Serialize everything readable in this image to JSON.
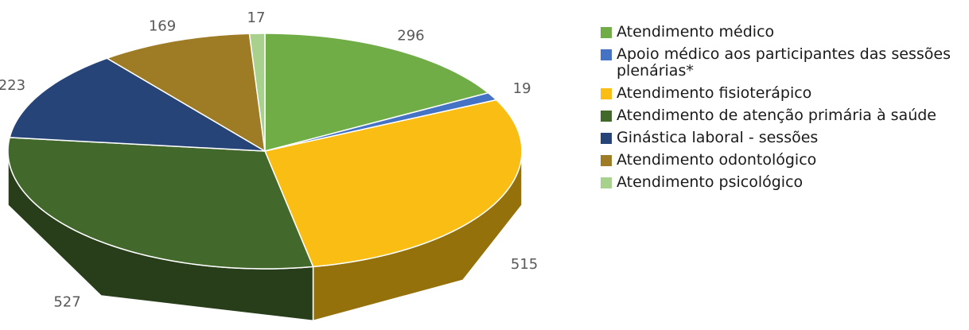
{
  "chart_data": {
    "type": "pie",
    "categories": [
      "Atendimento médico",
      "Apoio médico aos participantes das sessões plenárias*",
      "Atendimento fisioterápico",
      "Atendimento de atenção primária à saúde",
      "Ginástica laboral - sessões",
      "Atendimento odontológico",
      "Atendimento psicológico"
    ],
    "values": [
      296,
      19,
      515,
      527,
      223,
      169,
      17
    ],
    "colors": [
      "#70ad47",
      "#4472c4",
      "#f9bd14",
      "#43682b",
      "#264478",
      "#9e7b25",
      "#a9d18e"
    ],
    "legend": "right"
  }
}
